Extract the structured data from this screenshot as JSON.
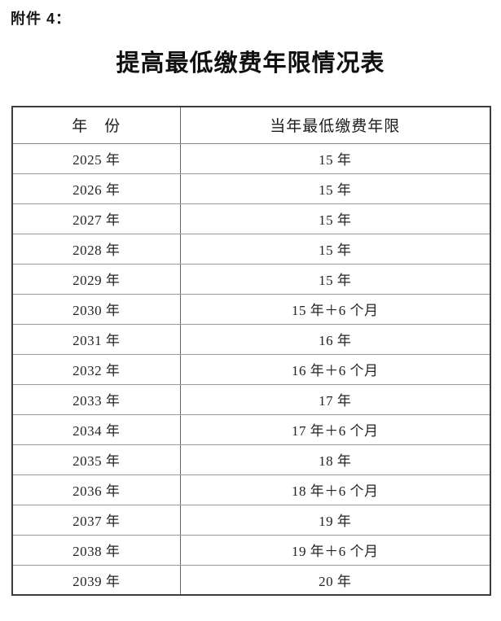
{
  "page": {
    "attachment_label": "附件 4：",
    "title": "提高最低缴费年限情况表"
  },
  "table": {
    "headers": [
      "年　份",
      "当年最低缴费年限"
    ],
    "rows": [
      {
        "year": "2025 年",
        "value": "15 年"
      },
      {
        "year": "2026 年",
        "value": "15 年"
      },
      {
        "year": "2027 年",
        "value": "15 年"
      },
      {
        "year": "2028 年",
        "value": "15 年"
      },
      {
        "year": "2029 年",
        "value": "15 年"
      },
      {
        "year": "2030 年",
        "value": "15 年＋6 个月"
      },
      {
        "year": "2031 年",
        "value": "16 年"
      },
      {
        "year": "2032 年",
        "value": "16 年＋6 个月"
      },
      {
        "year": "2033 年",
        "value": "17 年"
      },
      {
        "year": "2034 年",
        "value": "17 年＋6 个月"
      },
      {
        "year": "2035 年",
        "value": "18 年"
      },
      {
        "year": "2036 年",
        "value": "18 年＋6 个月"
      },
      {
        "year": "2037 年",
        "value": "19 年"
      },
      {
        "year": "2038 年",
        "value": "19 年＋6 个月"
      },
      {
        "year": "2039 年",
        "value": "20 年"
      }
    ],
    "colors": {
      "outer_border": "#3d3d3d",
      "inner_horizontal": "#9a9a9a",
      "column_divider": "#686868",
      "text": "#1a1a1a"
    }
  }
}
